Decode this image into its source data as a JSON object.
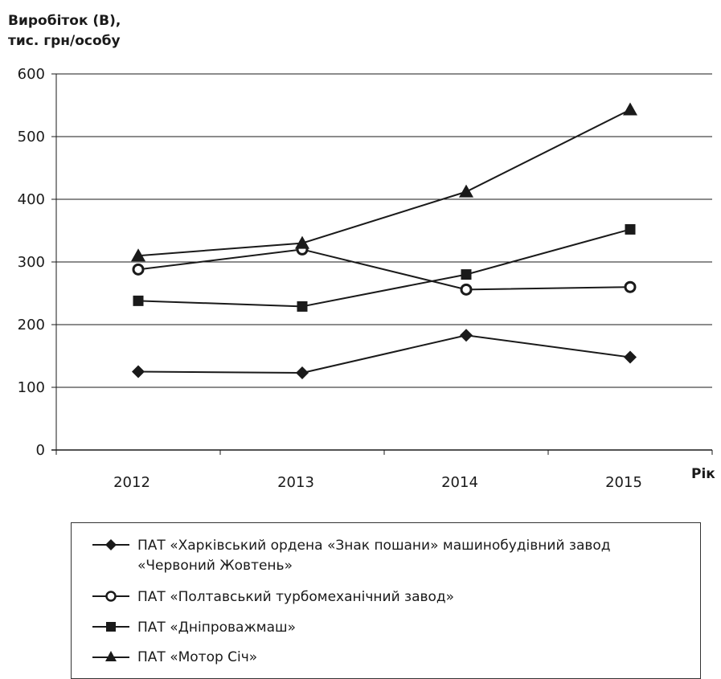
{
  "chart_data": {
    "type": "line",
    "title": "",
    "ylabel_lines": [
      "Виробіток (В),",
      "тис. грн/особу"
    ],
    "xlabel": "Рік",
    "categories": [
      "2012",
      "2013",
      "2014",
      "2015"
    ],
    "ylim": [
      0,
      600
    ],
    "yticks": [
      0,
      100,
      200,
      300,
      400,
      500,
      600
    ],
    "grid": true,
    "legend_position": "bottom",
    "series": [
      {
        "name": "ПАТ «Харківський ордена «Знак пошани» машинобудівний завод «Червоний Жовтень»",
        "marker": "diamond",
        "values": [
          125,
          123,
          183,
          148
        ]
      },
      {
        "name": "ПАТ «Полтавський турбомеханічний завод»",
        "marker": "circle-open",
        "values": [
          288,
          320,
          256,
          260
        ]
      },
      {
        "name": "ПАТ «Дніпроважмаш»",
        "marker": "square",
        "values": [
          238,
          229,
          280,
          352
        ]
      },
      {
        "name": "ПАТ «Мотор Січ»",
        "marker": "triangle",
        "values": [
          310,
          330,
          412,
          543
        ]
      }
    ]
  }
}
